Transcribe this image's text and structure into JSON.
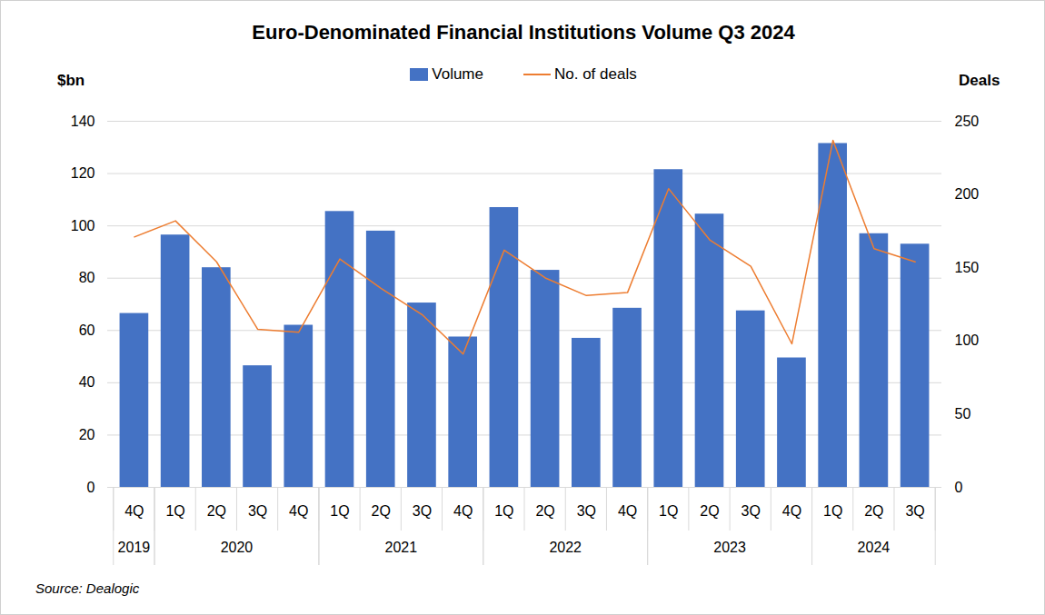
{
  "chart_data": {
    "type": "bar",
    "title": "Euro-Denominated Financial Institutions Volume Q3 2024",
    "caption": "Source: Dealogic",
    "y_label": "$bn",
    "y2_label": "Deals",
    "categories": [
      "4Q",
      "1Q",
      "2Q",
      "3Q",
      "4Q",
      "1Q",
      "2Q",
      "3Q",
      "4Q",
      "1Q",
      "2Q",
      "3Q",
      "4Q",
      "1Q",
      "2Q",
      "3Q",
      "4Q",
      "1Q",
      "2Q",
      "3Q"
    ],
    "category_groups": [
      "2019",
      "2020",
      "2020",
      "2020",
      "2020",
      "2021",
      "2021",
      "2021",
      "2021",
      "2022",
      "2022",
      "2022",
      "2022",
      "2023",
      "2023",
      "2023",
      "2023",
      "2024",
      "2024",
      "2024"
    ],
    "series": [
      {
        "name": "Volume",
        "type": "bar",
        "color": "#4472c4",
        "values": [
          66.5,
          96.5,
          84,
          46.5,
          62,
          105.5,
          98,
          70.5,
          57.5,
          107,
          83,
          57,
          68.5,
          121.5,
          104.5,
          67.5,
          49.5,
          131.5,
          97,
          93
        ]
      },
      {
        "name": "No. of deals",
        "type": "line",
        "color": "#ed7d31",
        "axis": "y2",
        "values": [
          171,
          182,
          154,
          108,
          106,
          156,
          136,
          118,
          91,
          162,
          143,
          131,
          133,
          204,
          169,
          151,
          98,
          237,
          163,
          154
        ]
      }
    ],
    "ylim": [
      0,
      140
    ],
    "yticks": [
      0,
      20,
      40,
      60,
      80,
      100,
      120,
      140
    ],
    "y2lim": [
      0,
      250
    ],
    "y2ticks": [
      0,
      50,
      100,
      150,
      200,
      250
    ],
    "grid": true,
    "legend": "top"
  }
}
